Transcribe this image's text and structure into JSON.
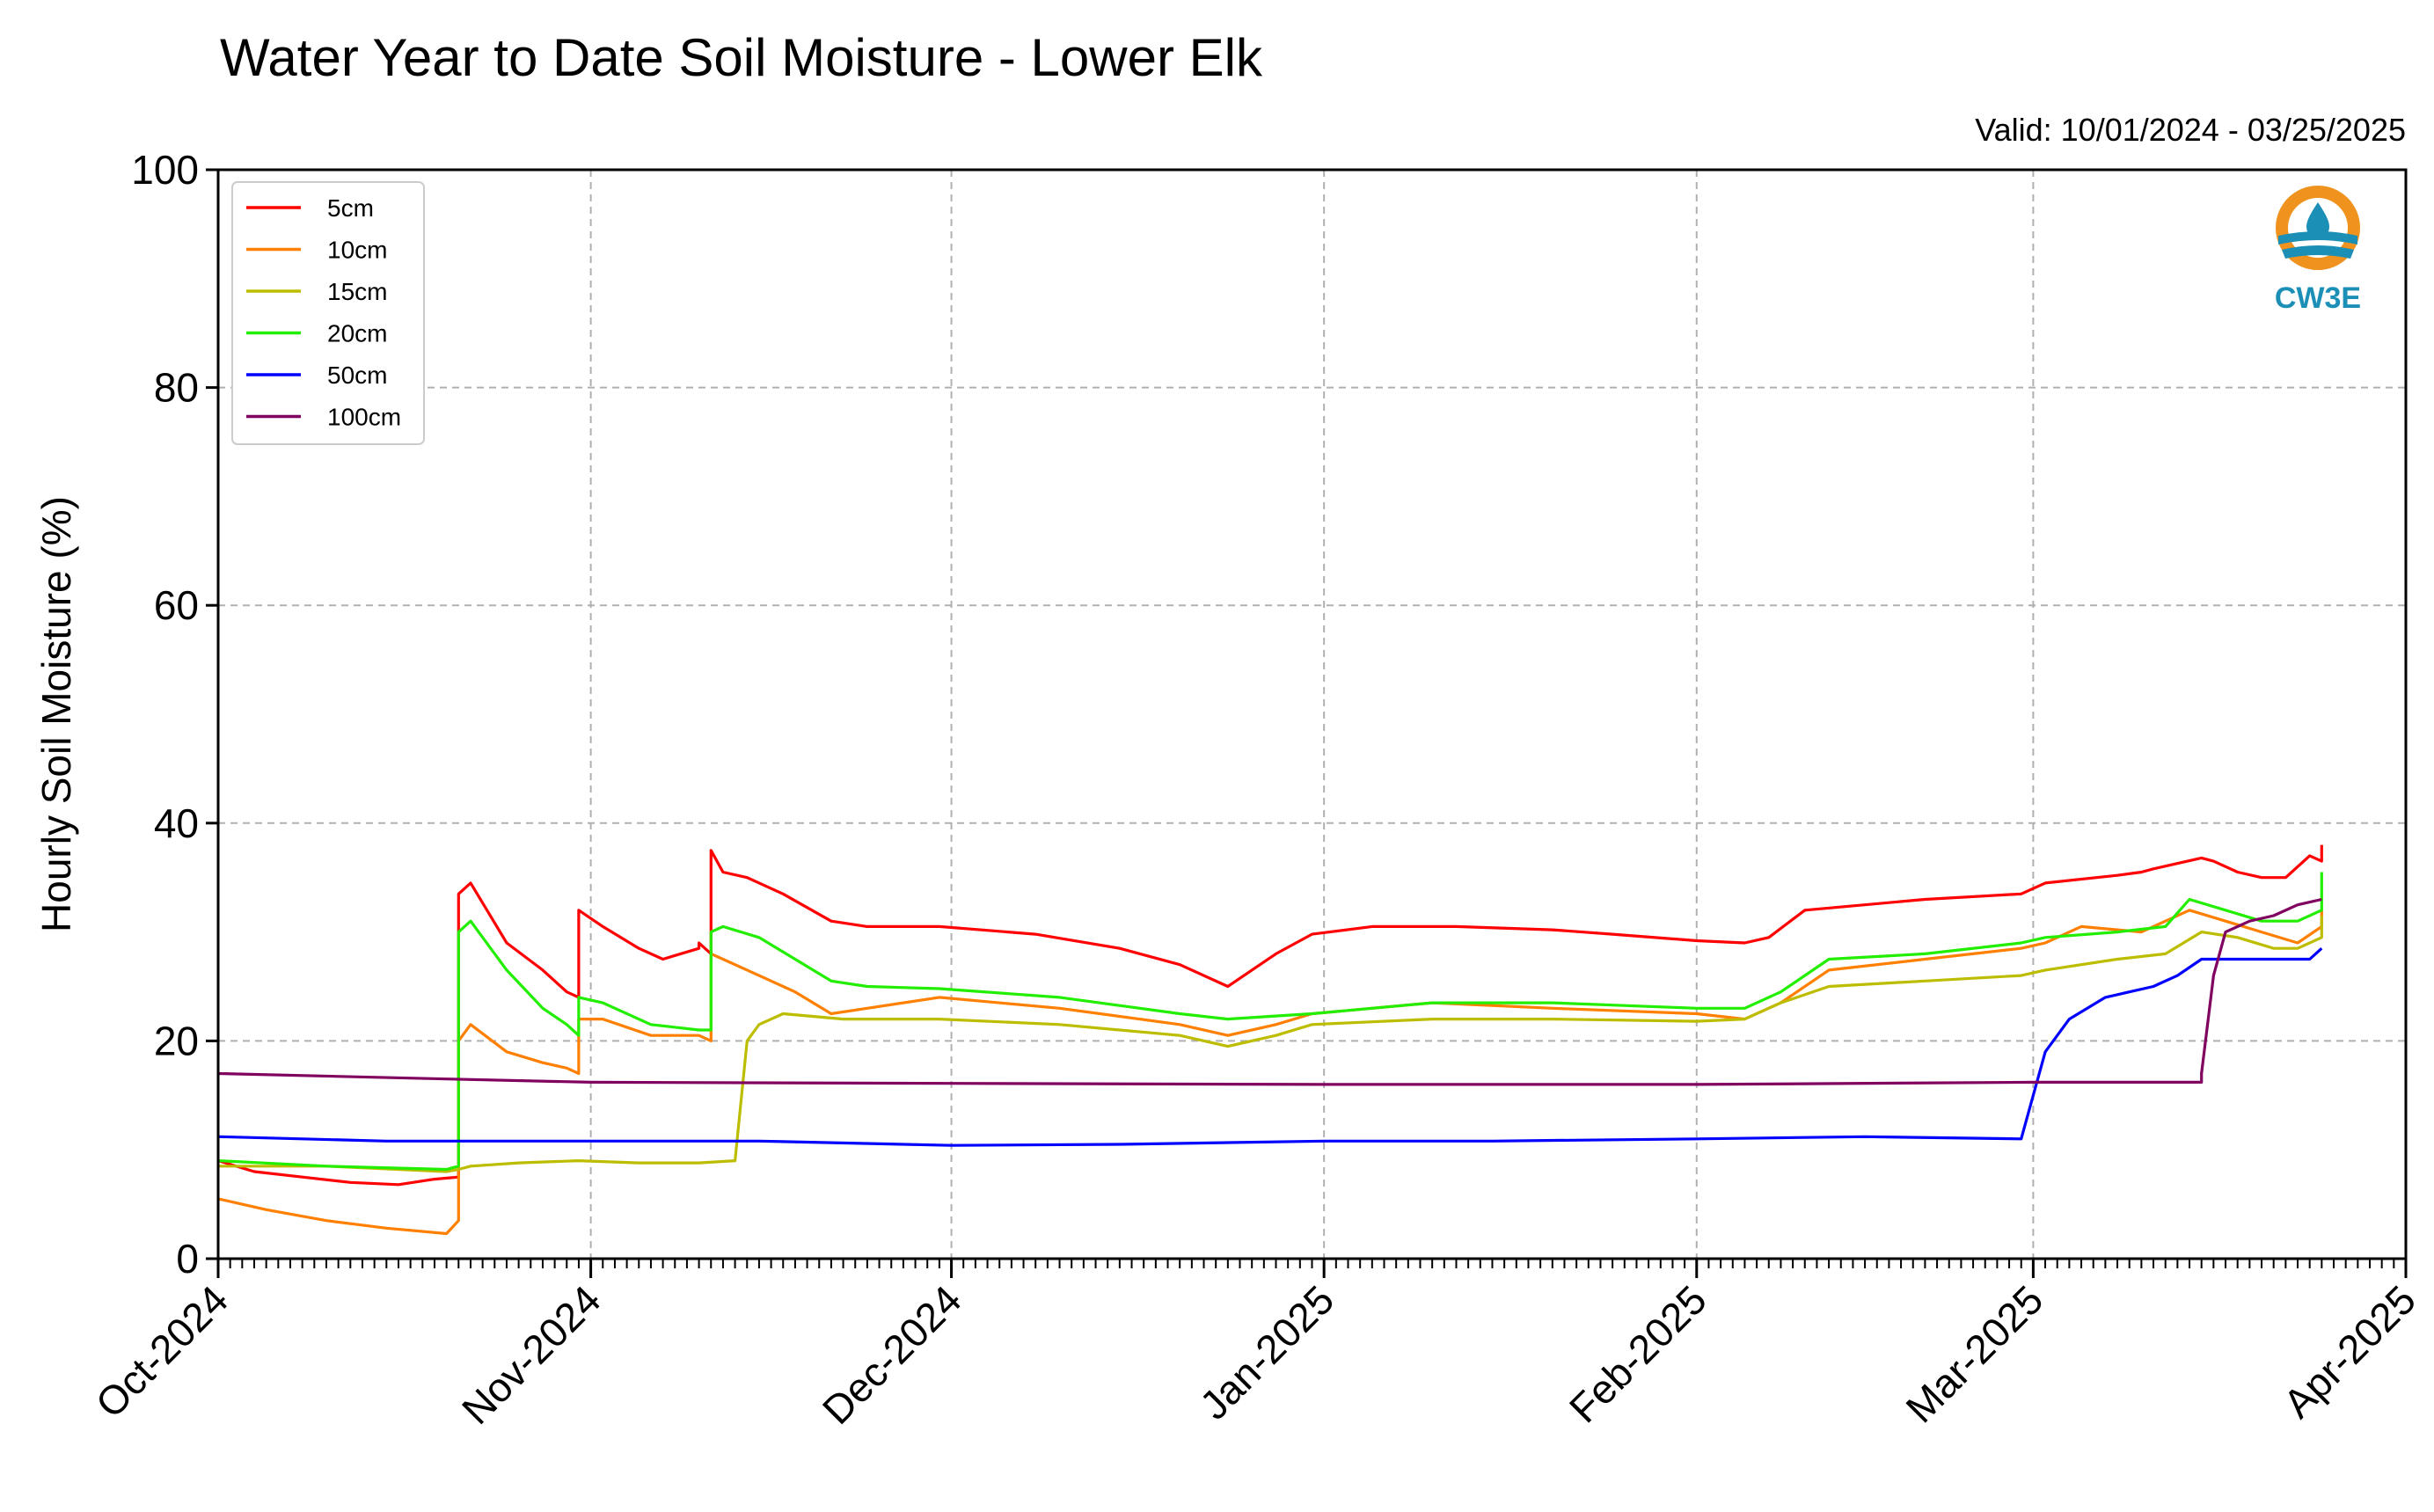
{
  "chart_data": {
    "type": "line",
    "title": "Water Year to Date Soil Moisture - Lower Elk",
    "subtitle": "Valid: 10/01/2024 - 03/25/2025",
    "xlabel": "",
    "ylabel": "Hourly Soil Moisture (%)",
    "ylim": [
      0,
      100
    ],
    "yticks": [
      0,
      20,
      40,
      60,
      80,
      100
    ],
    "ytick_labels": [
      "0",
      "20",
      "40",
      "60",
      "80",
      "100"
    ],
    "xlim": [
      "2024-10-01",
      "2025-04-01"
    ],
    "xticks": [
      "2024-10-01",
      "2024-11-01",
      "2024-12-01",
      "2025-01-01",
      "2025-02-01",
      "2025-03-01",
      "2025-04-01"
    ],
    "xtick_labels": [
      "Oct-2024",
      "Nov-2024",
      "Dec-2024",
      "Jan-2025",
      "Feb-2025",
      "Mar-2025",
      "Apr-2025"
    ],
    "grid": true,
    "legend_position": "top-left",
    "logo_text": "CW3E",
    "series": [
      {
        "name": "5cm",
        "color": "#ff0000",
        "x": [
          "2024-10-01",
          "2024-10-04",
          "2024-10-08",
          "2024-10-12",
          "2024-10-16",
          "2024-10-19",
          "2024-10-21",
          "2024-10-21",
          "2024-10-22",
          "2024-10-25",
          "2024-10-28",
          "2024-10-30",
          "2024-10-31",
          "2024-10-31",
          "2024-11-02",
          "2024-11-05",
          "2024-11-07",
          "2024-11-10",
          "2024-11-10",
          "2024-11-11",
          "2024-11-11",
          "2024-11-12",
          "2024-11-14",
          "2024-11-17",
          "2024-11-21",
          "2024-11-24",
          "2024-11-30",
          "2024-12-08",
          "2024-12-15",
          "2024-12-20",
          "2024-12-24",
          "2024-12-28",
          "2024-12-31",
          "2025-01-05",
          "2025-01-12",
          "2025-01-20",
          "2025-01-25",
          "2025-02-01",
          "2025-02-05",
          "2025-02-07",
          "2025-02-10",
          "2025-02-20",
          "2025-02-28",
          "2025-03-02",
          "2025-03-08",
          "2025-03-10",
          "2025-03-11",
          "2025-03-15",
          "2025-03-16",
          "2025-03-18",
          "2025-03-20",
          "2025-03-22",
          "2025-03-24",
          "2025-03-25",
          "2025-03-25"
        ],
        "values": [
          9,
          8,
          7.5,
          7,
          6.8,
          7.3,
          7.5,
          33.5,
          34.5,
          29,
          26.5,
          24.5,
          24,
          32,
          30.5,
          28.5,
          27.5,
          28.5,
          29,
          28,
          37.5,
          35.5,
          35,
          33.5,
          31,
          30.5,
          30.5,
          29.8,
          28.5,
          27,
          25,
          28,
          29.8,
          30.5,
          30.5,
          30.2,
          29.8,
          29.2,
          29,
          29.5,
          32,
          33,
          33.5,
          34.5,
          35.2,
          35.5,
          35.8,
          36.8,
          36.5,
          35.5,
          35,
          35,
          37,
          36.5,
          38
        ]
      },
      {
        "name": "10cm",
        "color": "#ff8000",
        "x": [
          "2024-10-01",
          "2024-10-05",
          "2024-10-10",
          "2024-10-15",
          "2024-10-20",
          "2024-10-21",
          "2024-10-21",
          "2024-10-22",
          "2024-10-25",
          "2024-10-28",
          "2024-10-30",
          "2024-10-31",
          "2024-10-31",
          "2024-11-02",
          "2024-11-06",
          "2024-11-10",
          "2024-11-11",
          "2024-11-11",
          "2024-11-12",
          "2024-11-15",
          "2024-11-18",
          "2024-11-21",
          "2024-11-24",
          "2024-11-30",
          "2024-12-10",
          "2024-12-20",
          "2024-12-24",
          "2024-12-28",
          "2024-12-31",
          "2025-01-10",
          "2025-01-20",
          "2025-02-01",
          "2025-02-05",
          "2025-02-08",
          "2025-02-12",
          "2025-02-20",
          "2025-02-28",
          "2025-03-02",
          "2025-03-05",
          "2025-03-10",
          "2025-03-14",
          "2025-03-17",
          "2025-03-20",
          "2025-03-23",
          "2025-03-25",
          "2025-03-25"
        ],
        "values": [
          5.5,
          4.5,
          3.5,
          2.8,
          2.3,
          3.5,
          20,
          21.5,
          19,
          18,
          17.5,
          17,
          22,
          22,
          20.5,
          20.5,
          20,
          28,
          27.5,
          26,
          24.5,
          22.5,
          23,
          24,
          23,
          21.5,
          20.5,
          21.5,
          22.5,
          23.5,
          23,
          22.5,
          22,
          23.5,
          26.5,
          27.5,
          28.5,
          29,
          30.5,
          30,
          32,
          31,
          30,
          29,
          30.5,
          32
        ]
      },
      {
        "name": "15cm",
        "color": "#bdbd00",
        "x": [
          "2024-10-01",
          "2024-10-10",
          "2024-10-20",
          "2024-10-21",
          "2024-10-22",
          "2024-10-26",
          "2024-10-31",
          "2024-11-05",
          "2024-11-10",
          "2024-11-13",
          "2024-11-14",
          "2024-11-15",
          "2024-11-17",
          "2024-11-22",
          "2024-11-30",
          "2024-12-10",
          "2024-12-20",
          "2024-12-24",
          "2024-12-28",
          "2024-12-31",
          "2025-01-10",
          "2025-01-20",
          "2025-02-01",
          "2025-02-05",
          "2025-02-08",
          "2025-02-12",
          "2025-02-20",
          "2025-02-28",
          "2025-03-02",
          "2025-03-08",
          "2025-03-12",
          "2025-03-15",
          "2025-03-18",
          "2025-03-21",
          "2025-03-23",
          "2025-03-25",
          "2025-03-25"
        ],
        "values": [
          8.5,
          8.5,
          8,
          8.2,
          8.5,
          8.8,
          9,
          8.8,
          8.8,
          9,
          20,
          21.5,
          22.5,
          22,
          22,
          21.5,
          20.5,
          19.5,
          20.5,
          21.5,
          22,
          22,
          21.8,
          22,
          23.5,
          25,
          25.5,
          26,
          26.5,
          27.5,
          28,
          30,
          29.5,
          28.5,
          28.5,
          29.5,
          31.5
        ]
      },
      {
        "name": "20cm",
        "color": "#22ee00",
        "x": [
          "2024-10-01",
          "2024-10-10",
          "2024-10-20",
          "2024-10-21",
          "2024-10-21",
          "2024-10-22",
          "2024-10-25",
          "2024-10-28",
          "2024-10-30",
          "2024-10-31",
          "2024-10-31",
          "2024-11-02",
          "2024-11-06",
          "2024-11-10",
          "2024-11-11",
          "2024-11-11",
          "2024-11-12",
          "2024-11-15",
          "2024-11-18",
          "2024-11-21",
          "2024-11-24",
          "2024-11-30",
          "2024-12-10",
          "2024-12-20",
          "2024-12-24",
          "2024-12-31",
          "2025-01-10",
          "2025-01-20",
          "2025-02-01",
          "2025-02-05",
          "2025-02-08",
          "2025-02-12",
          "2025-02-20",
          "2025-02-28",
          "2025-03-02",
          "2025-03-08",
          "2025-03-12",
          "2025-03-14",
          "2025-03-17",
          "2025-03-20",
          "2025-03-23",
          "2025-03-25",
          "2025-03-25"
        ],
        "values": [
          9,
          8.5,
          8.2,
          8.5,
          30,
          31,
          26.5,
          23,
          21.5,
          20.5,
          24,
          23.5,
          21.5,
          21,
          21,
          30,
          30.5,
          29.5,
          27.5,
          25.5,
          25,
          24.8,
          24,
          22.5,
          22,
          22.5,
          23.5,
          23.5,
          23,
          23,
          24.5,
          27.5,
          28,
          29,
          29.5,
          30,
          30.5,
          33,
          32,
          31,
          31,
          32,
          35.5
        ]
      },
      {
        "name": "50cm",
        "color": "#0000ff",
        "x": [
          "2024-10-01",
          "2024-10-15",
          "2024-11-01",
          "2024-11-15",
          "2024-12-01",
          "2024-12-15",
          "2025-01-01",
          "2025-01-15",
          "2025-02-01",
          "2025-02-15",
          "2025-02-28",
          "2025-03-01",
          "2025-03-02",
          "2025-03-04",
          "2025-03-07",
          "2025-03-09",
          "2025-03-11",
          "2025-03-13",
          "2025-03-15",
          "2025-03-20",
          "2025-03-24",
          "2025-03-25"
        ],
        "values": [
          11.2,
          10.8,
          10.8,
          10.8,
          10.4,
          10.5,
          10.8,
          10.8,
          11,
          11.2,
          11,
          15,
          19,
          22,
          24,
          24.5,
          25,
          26,
          27.5,
          27.5,
          27.5,
          28.5
        ]
      },
      {
        "name": "100cm",
        "color": "#800060",
        "x": [
          "2024-10-01",
          "2024-10-20",
          "2024-11-01",
          "2024-12-01",
          "2025-01-01",
          "2025-02-01",
          "2025-03-01",
          "2025-03-15",
          "2025-03-15",
          "2025-03-16",
          "2025-03-17",
          "2025-03-19",
          "2025-03-21",
          "2025-03-23",
          "2025-03-25"
        ],
        "values": [
          17,
          16.5,
          16.2,
          16.1,
          16,
          16,
          16.2,
          16.2,
          17,
          26,
          30,
          31,
          31.5,
          32.5,
          33
        ]
      }
    ]
  }
}
